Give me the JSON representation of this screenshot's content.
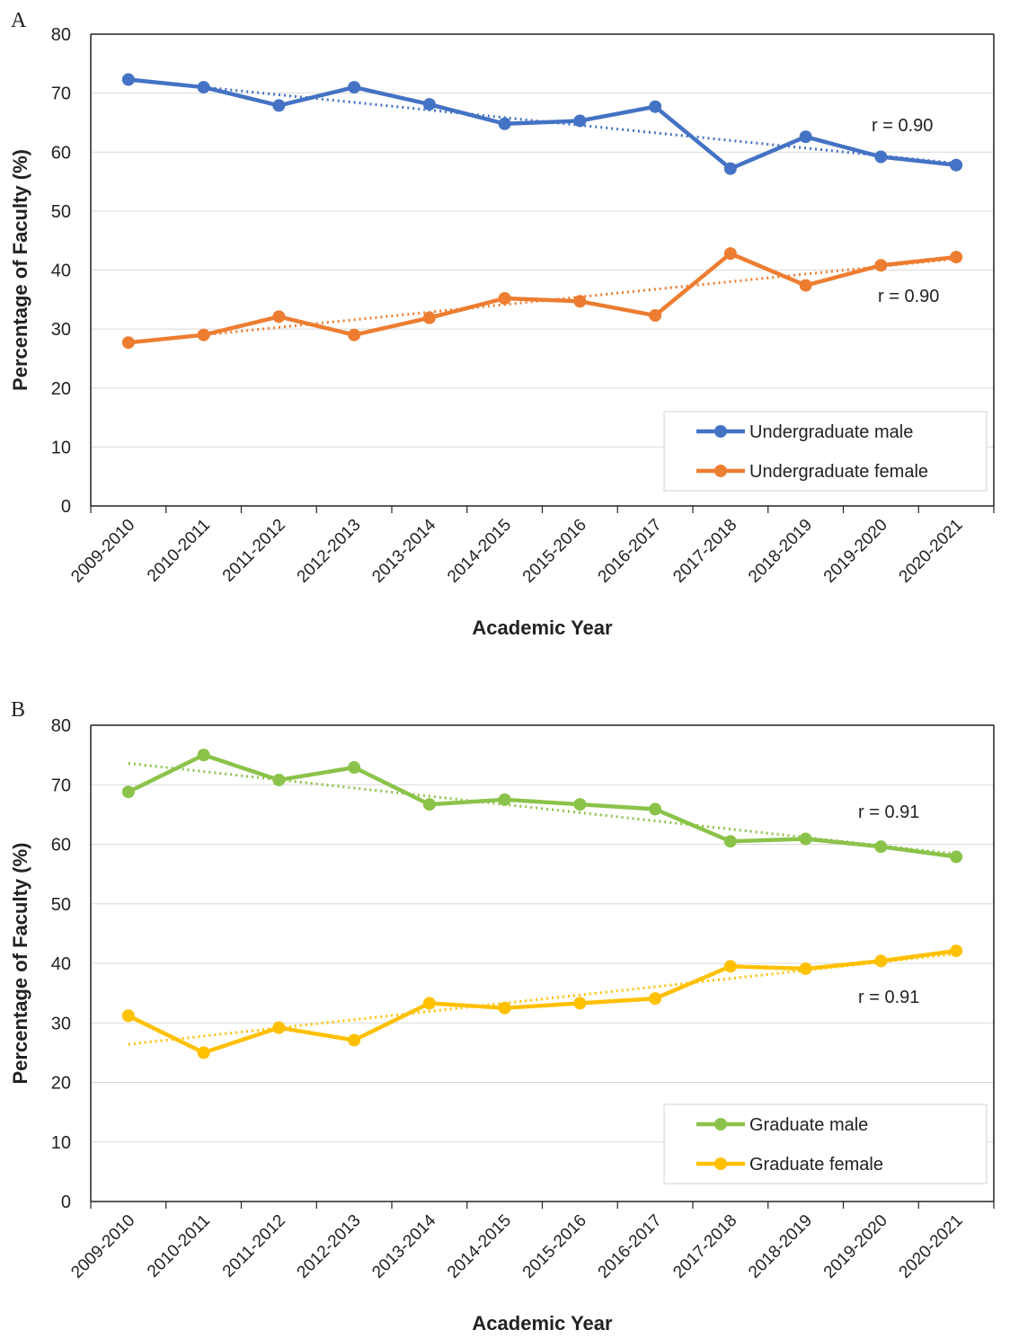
{
  "chart_data": [
    {
      "panel_label": "A",
      "type": "line",
      "xlabel": "Academic Year",
      "ylabel": "Percentage of Faculty (%)",
      "ylim": [
        0,
        80
      ],
      "yticks": [
        "0",
        "10",
        "20",
        "30",
        "40",
        "50",
        "60",
        "70",
        "80"
      ],
      "categories": [
        "2009-2010",
        "2010-2011",
        "2011-2012",
        "2012-2013",
        "2013-2014",
        "2014-2015",
        "2015-2016",
        "2016-2017",
        "2017-2018",
        "2018-2019",
        "2019-2020",
        "2020-2021"
      ],
      "grid": true,
      "legend_position": "bottom-right",
      "series": [
        {
          "name": "Undergraduate male",
          "color": "#4472C4",
          "values": [
            72.3,
            71.0,
            67.9,
            71.0,
            68.1,
            64.8,
            65.3,
            67.7,
            57.2,
            62.6,
            59.2,
            57.8
          ],
          "trend": [
            72.3,
            58.1
          ],
          "annotation": "r = 0.90"
        },
        {
          "name": "Undergraduate female",
          "color": "#ED7D31",
          "values": [
            27.7,
            29.0,
            32.1,
            29.0,
            31.9,
            35.2,
            34.7,
            32.3,
            42.8,
            37.4,
            40.8,
            42.2
          ],
          "trend": [
            27.7,
            41.9
          ],
          "annotation": "r = 0.90"
        }
      ]
    },
    {
      "panel_label": "B",
      "type": "line",
      "xlabel": "Academic Year",
      "ylabel": "Percentage of Faculty (%)",
      "ylim": [
        0,
        80
      ],
      "yticks": [
        "0",
        "10",
        "20",
        "30",
        "40",
        "50",
        "60",
        "70",
        "80"
      ],
      "categories": [
        "2009-2010",
        "2010-2011",
        "2011-2012",
        "2012-2013",
        "2013-2014",
        "2014-2015",
        "2015-2016",
        "2016-2017",
        "2017-2018",
        "2018-2019",
        "2019-2020",
        "2020-2021"
      ],
      "grid": true,
      "legend_position": "bottom-right",
      "series": [
        {
          "name": "Graduate male",
          "color": "#8BC34A",
          "values": [
            68.8,
            75.0,
            70.8,
            72.9,
            66.7,
            67.5,
            66.7,
            65.9,
            60.5,
            60.9,
            59.6,
            57.9
          ],
          "trend": [
            73.6,
            58.4
          ],
          "annotation": "r = 0.91"
        },
        {
          "name": "Graduate female",
          "color": "#FFC000",
          "values": [
            31.2,
            25.0,
            29.2,
            27.1,
            33.3,
            32.5,
            33.3,
            34.1,
            39.5,
            39.1,
            40.4,
            42.1
          ],
          "trend": [
            26.4,
            41.6
          ],
          "annotation": "r = 0.91"
        }
      ]
    }
  ]
}
